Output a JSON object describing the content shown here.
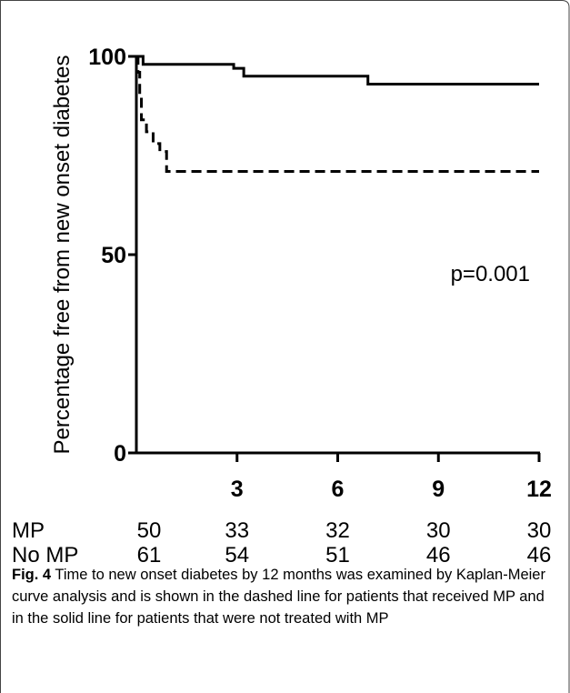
{
  "chart_data": {
    "type": "line",
    "title": "",
    "xlabel": "",
    "ylabel": "Percentage free from new onset diabetes",
    "xlim": [
      0,
      12
    ],
    "ylim": [
      0,
      100
    ],
    "x_ticks": [
      0,
      3,
      6,
      9,
      12
    ],
    "x_tick_labels": [
      "",
      "3",
      "6",
      "9",
      "12"
    ],
    "y_ticks": [
      0,
      50,
      100
    ],
    "y_tick_labels": [
      "0",
      "50",
      "100"
    ],
    "grid": false,
    "legend": "none",
    "annotation": "p=0.001",
    "series": [
      {
        "style": "solid",
        "color": "#000000",
        "x": [
          0,
          0.2,
          2.9,
          3.2,
          6.9,
          12
        ],
        "y": [
          100,
          98,
          97,
          95,
          93,
          93
        ]
      },
      {
        "style": "dashed",
        "color": "#000000",
        "x": [
          0,
          0.05,
          0.1,
          0.15,
          0.3,
          0.5,
          0.7,
          0.9,
          12
        ],
        "y": [
          100,
          96,
          90,
          84,
          81,
          78,
          76,
          71,
          71
        ]
      }
    ],
    "risk_table": {
      "timepoints": [
        0,
        3,
        6,
        9,
        12
      ],
      "rows": [
        {
          "label": "MP",
          "values": [
            "50",
            "33",
            "32",
            "30",
            "30"
          ]
        },
        {
          "label": "No MP",
          "values": [
            "61",
            "54",
            "51",
            "46",
            "46"
          ]
        }
      ]
    }
  },
  "caption": {
    "label": "Fig. 4",
    "text": " Time to new onset diabetes by 12 months was examined by Kaplan-Meier curve analysis and is shown in the dashed line for patients that received MP and in the solid line for patients that were not treated with MP"
  }
}
